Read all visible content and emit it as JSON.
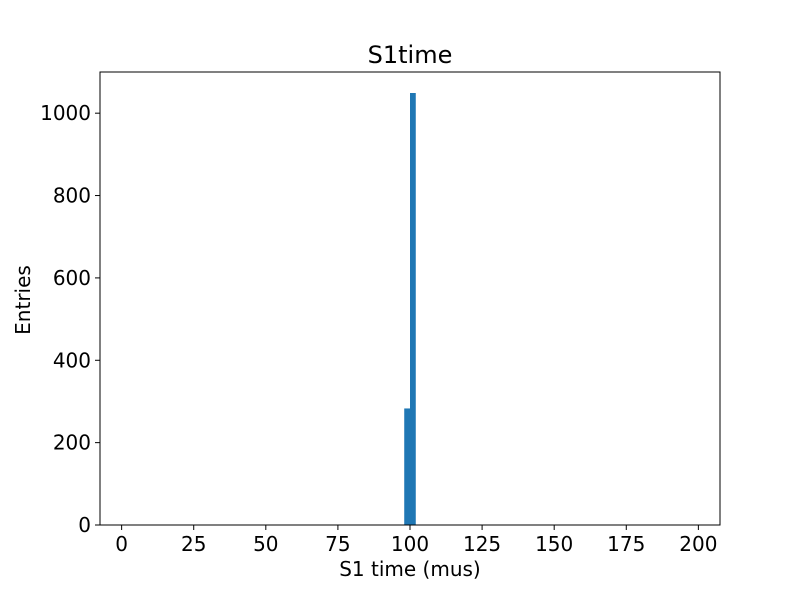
{
  "chart_data": {
    "type": "bar",
    "title": "S1time",
    "xlabel": "S1 time (mus)",
    "ylabel": "Entries",
    "xlim": [
      -7.5,
      207.5
    ],
    "ylim": [
      0,
      1100
    ],
    "x_ticks": [
      0,
      25,
      50,
      75,
      100,
      125,
      150,
      175,
      200
    ],
    "y_ticks": [
      0,
      200,
      400,
      600,
      800,
      1000
    ],
    "grid": false,
    "bar_color": "#1f77b4",
    "bins": [
      {
        "x0": 98,
        "x1": 100,
        "value": 283
      },
      {
        "x0": 100,
        "x1": 102,
        "value": 1049
      }
    ]
  }
}
